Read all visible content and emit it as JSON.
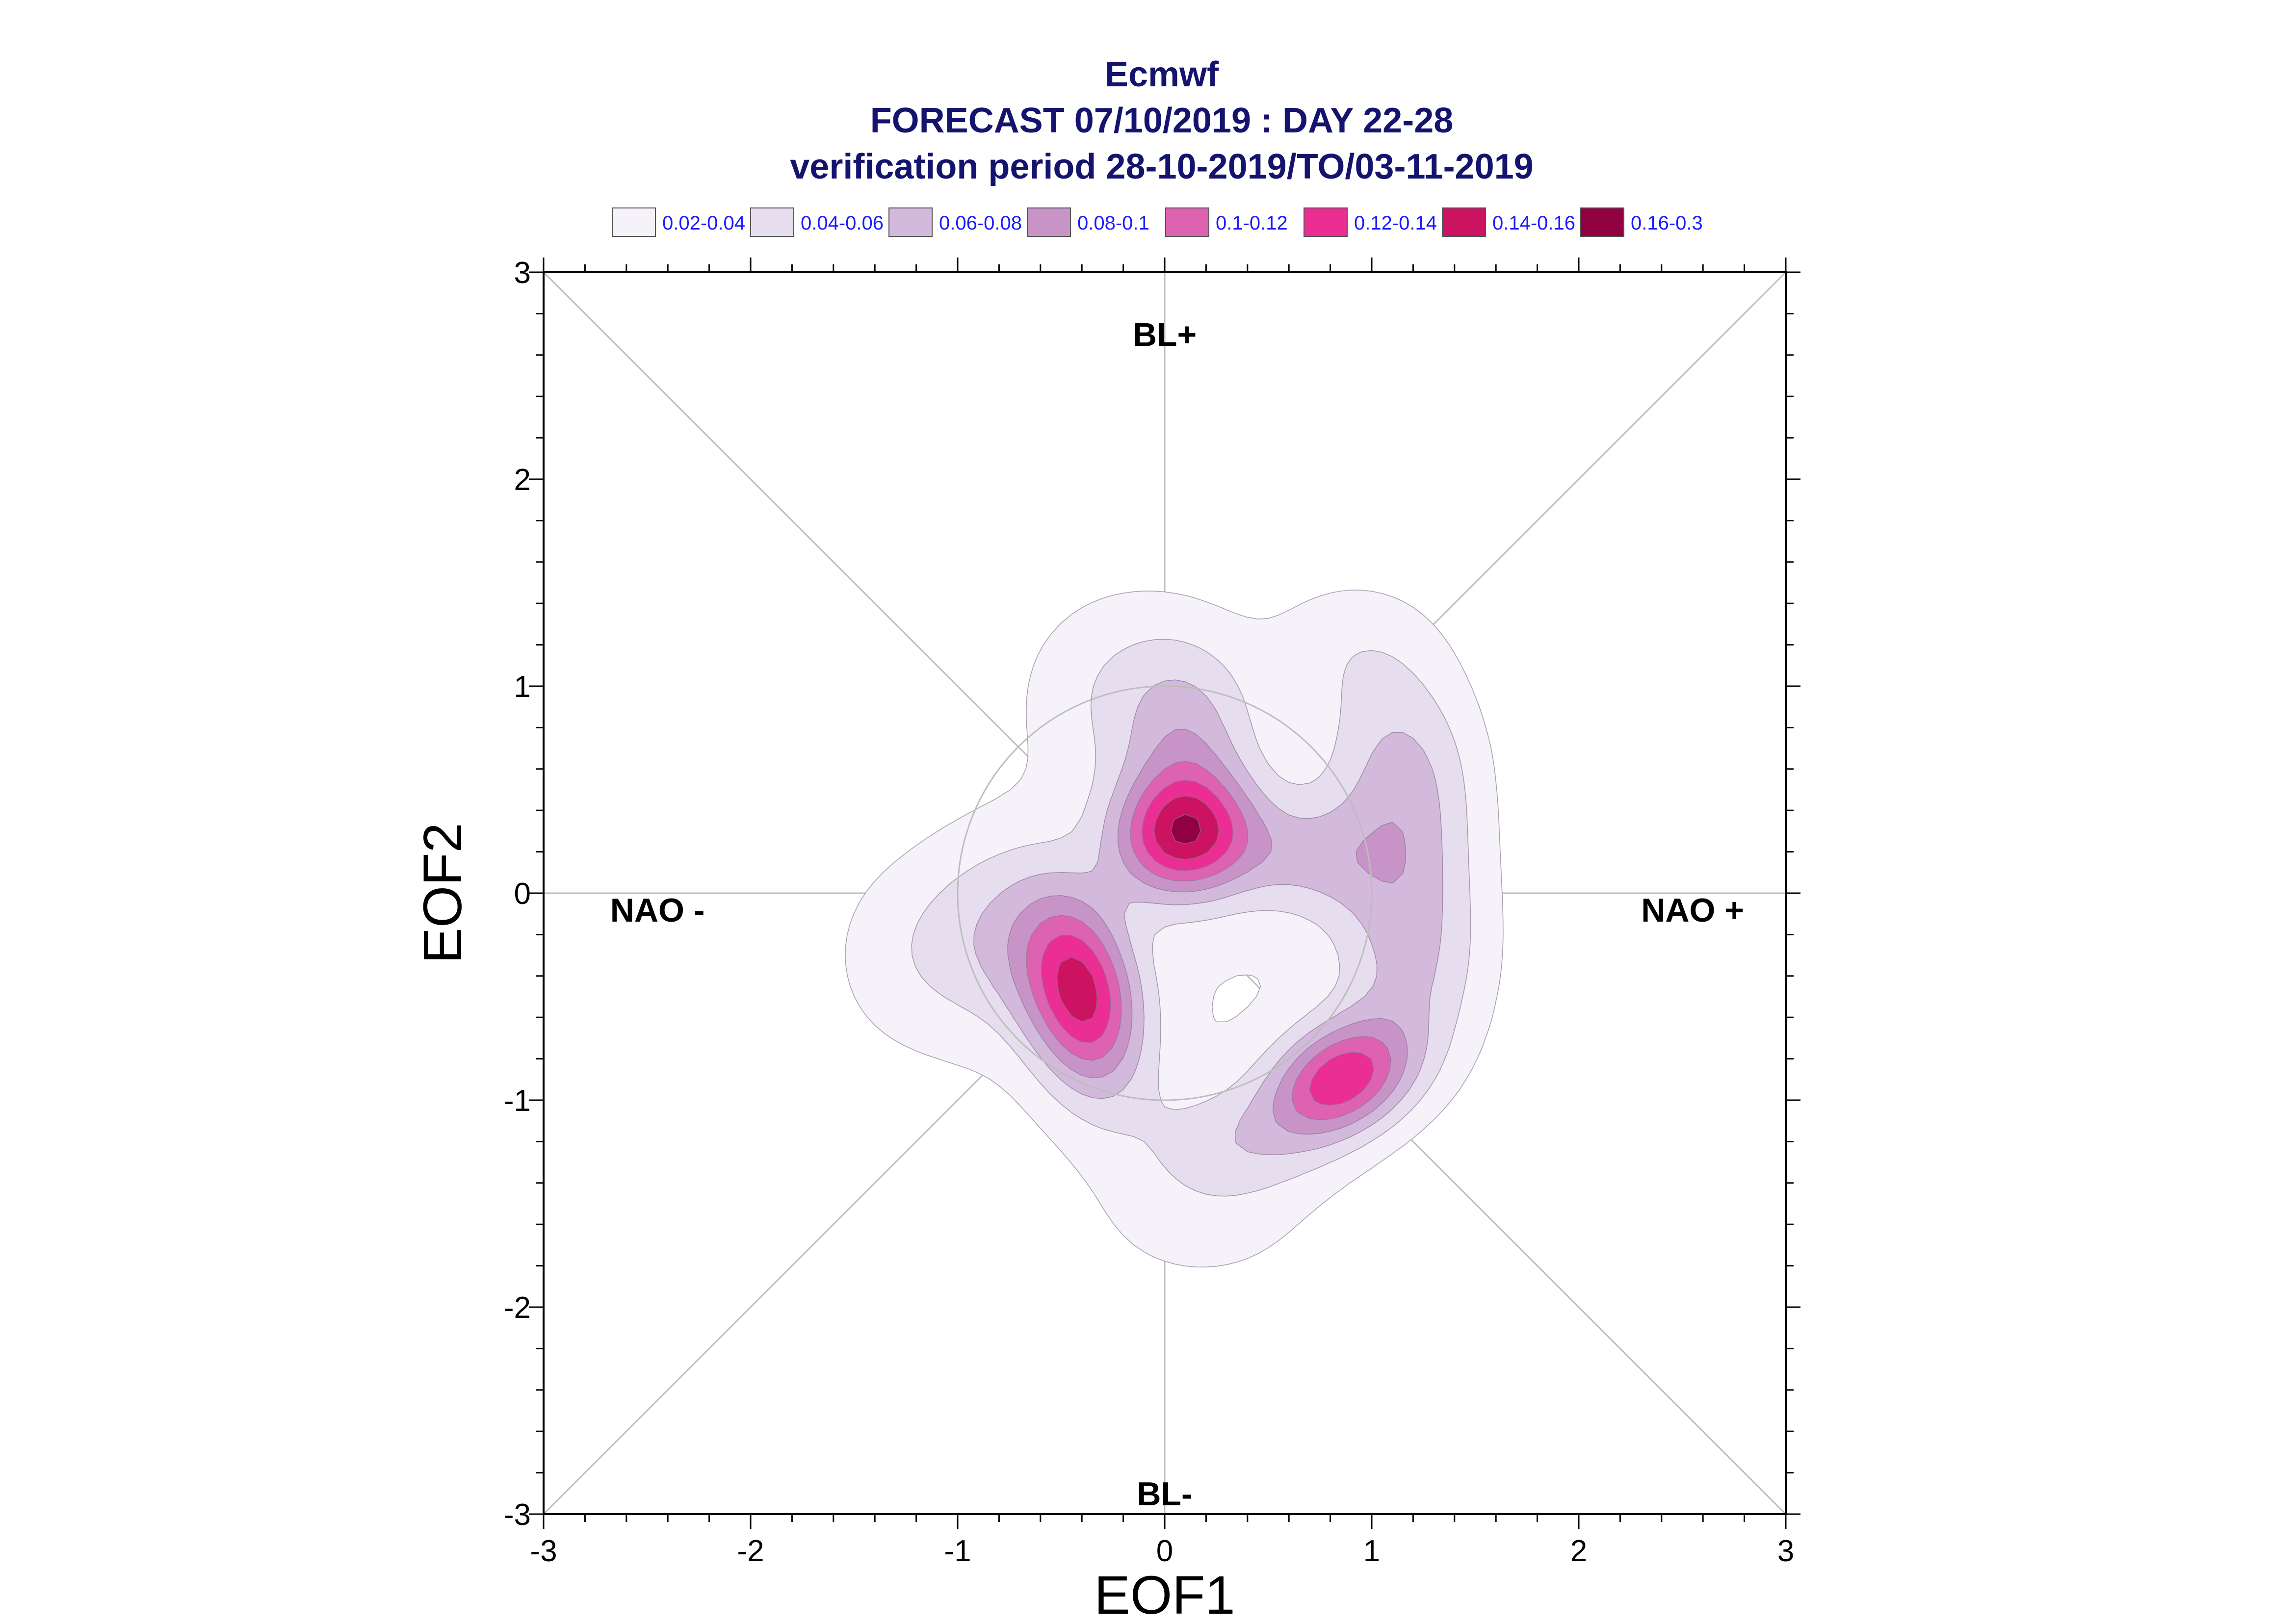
{
  "chart_data": {
    "type": "contour",
    "title_lines": [
      "Ecmwf",
      "FORECAST 07/10/2019 : DAY 22-28",
      "verification period 28-10-2019/TO/03-11-2019"
    ],
    "xlabel": "EOF1",
    "ylabel": "EOF2",
    "xlim": [
      -3,
      3
    ],
    "ylim": [
      -3,
      3
    ],
    "x_ticks": [
      "-3",
      "-2",
      "-1",
      "0",
      "1",
      "2",
      "3"
    ],
    "y_ticks": [
      "-3",
      "-2",
      "-1",
      "0",
      "1",
      "2",
      "3"
    ],
    "legend": [
      {
        "label": "0.02-0.04",
        "color": "#f5f3f9"
      },
      {
        "label": "0.04-0.06",
        "color": "#e6ddef"
      },
      {
        "label": "0.06-0.08",
        "color": "#d3b9db"
      },
      {
        "label": "0.08-0.1",
        "color": "#c894c8"
      },
      {
        "label": "0.1-0.12",
        "color": "#dd63b2"
      },
      {
        "label": "0.12-0.14",
        "color": "#ea2e93"
      },
      {
        "label": "0.14-0.16",
        "color": "#cc1361"
      },
      {
        "label": "0.16-0.3",
        "color": "#910040"
      }
    ],
    "regimes": [
      {
        "label": "BL+",
        "x": 0,
        "y": 2.7
      },
      {
        "label": "BL-",
        "x": 0,
        "y": -2.9
      },
      {
        "label": "NAO -",
        "x": -2.45,
        "y": -0.08
      },
      {
        "label": "NAO +",
        "x": 2.55,
        "y": -0.08
      }
    ],
    "density_centers": [
      {
        "x": 0.1,
        "y": 0.25,
        "peak": 0.17
      },
      {
        "x": -0.4,
        "y": -0.5,
        "peak": 0.165
      },
      {
        "x": 0.85,
        "y": -0.9,
        "peak": 0.165
      }
    ],
    "grid": "diagonals and axes through origin, reference circle radius 1"
  }
}
